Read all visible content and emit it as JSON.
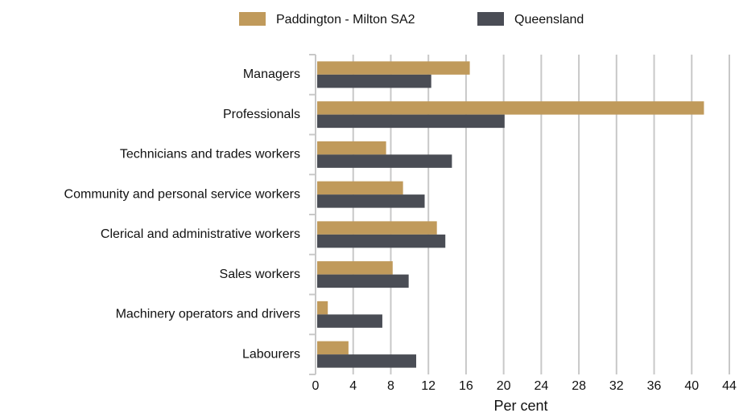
{
  "chart_data": {
    "type": "hbar",
    "categories": [
      "Managers",
      "Professionals",
      "Technicians and trades workers",
      "Community and personal service workers",
      "Clerical and administrative workers",
      "Sales workers",
      "Machinery operators and drivers",
      "Labourers"
    ],
    "series": [
      {
        "name": "Paddington - Milton SA2",
        "color": "#c09a5b",
        "values": [
          16.4,
          41.3,
          7.5,
          9.3,
          12.9,
          8.2,
          1.3,
          3.5
        ]
      },
      {
        "name": "Queensland",
        "color": "#4a4d55",
        "values": [
          12.3,
          20.1,
          14.5,
          11.6,
          13.8,
          9.9,
          7.1,
          10.7
        ]
      }
    ],
    "xlabel": "Per cent",
    "xlim": [
      0,
      44
    ],
    "xticks": [
      0,
      4,
      8,
      12,
      16,
      20,
      24,
      28,
      32,
      36,
      40,
      44
    ],
    "grid": true,
    "legend": "top"
  }
}
